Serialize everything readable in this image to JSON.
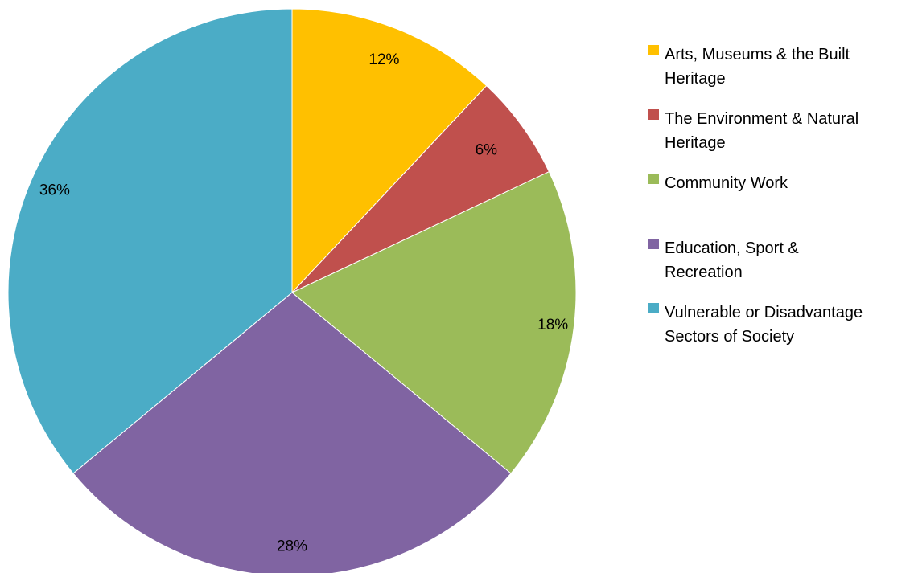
{
  "chart_data": {
    "type": "pie",
    "title": "",
    "legend_position": "right",
    "start_angle_deg": 0,
    "direction": "clockwise",
    "slices": [
      {
        "label": "Arts, Museums & the Built Heritage",
        "legend_lines": [
          "Arts, Museums & the Built",
          "Heritage"
        ],
        "value": 12,
        "value_label": "12%",
        "color": "#FFC000"
      },
      {
        "label": "The Environment & Natural Heritage",
        "legend_lines": [
          "The Environment & Natural",
          "Heritage"
        ],
        "value": 6,
        "value_label": "6%",
        "color": "#C0504D"
      },
      {
        "label": "Community Work",
        "legend_lines": [
          "Community Work"
        ],
        "value": 18,
        "value_label": "18%",
        "color": "#9BBB59"
      },
      {
        "label": "Education, Sport & Recreation",
        "legend_lines": [
          "Education, Sport &",
          "Recreation"
        ],
        "value": 28,
        "value_label": "28%",
        "color": "#8064A2"
      },
      {
        "label": "Vulnerable or Disadvantage Sectors of Society",
        "legend_lines": [
          "Vulnerable or Disadvantage",
          "Sectors of Society"
        ],
        "value": 36,
        "value_label": "36%",
        "color": "#4BACC6"
      }
    ]
  }
}
